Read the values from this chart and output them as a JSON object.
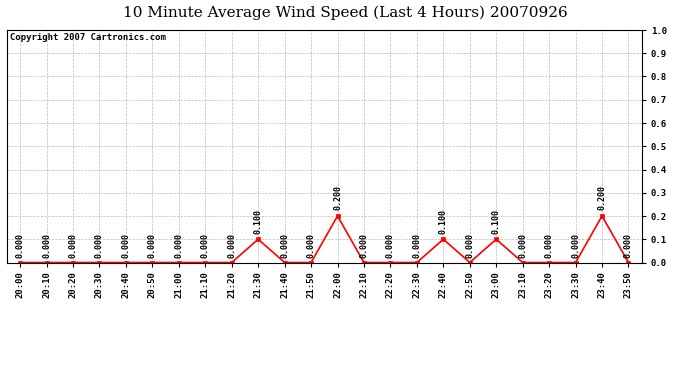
{
  "title": "10 Minute Average Wind Speed (Last 4 Hours) 20070926",
  "copyright": "Copyright 2007 Cartronics.com",
  "x_labels": [
    "20:00",
    "20:10",
    "20:20",
    "20:30",
    "20:40",
    "20:50",
    "21:00",
    "21:10",
    "21:20",
    "21:30",
    "21:40",
    "21:50",
    "22:00",
    "22:10",
    "22:20",
    "22:30",
    "22:40",
    "22:50",
    "23:00",
    "23:10",
    "23:20",
    "23:30",
    "23:40",
    "23:50"
  ],
  "y_values": [
    0.0,
    0.0,
    0.0,
    0.0,
    0.0,
    0.0,
    0.0,
    0.0,
    0.0,
    0.1,
    0.0,
    0.0,
    0.2,
    0.0,
    0.0,
    0.0,
    0.1,
    0.0,
    0.1,
    0.0,
    0.0,
    0.0,
    0.2,
    0.0
  ],
  "line_color": "#ff0000",
  "background_color": "#ffffff",
  "plot_bg_color": "#ffffff",
  "grid_color": "#bbbbbb",
  "ylim": [
    0.0,
    1.0
  ],
  "yticks": [
    0.0,
    0.1,
    0.2,
    0.3,
    0.4,
    0.5,
    0.6,
    0.7,
    0.8,
    0.9,
    1.0
  ],
  "title_fontsize": 11,
  "tick_fontsize": 6.5,
  "annotation_fontsize": 6,
  "copyright_fontsize": 6.5
}
